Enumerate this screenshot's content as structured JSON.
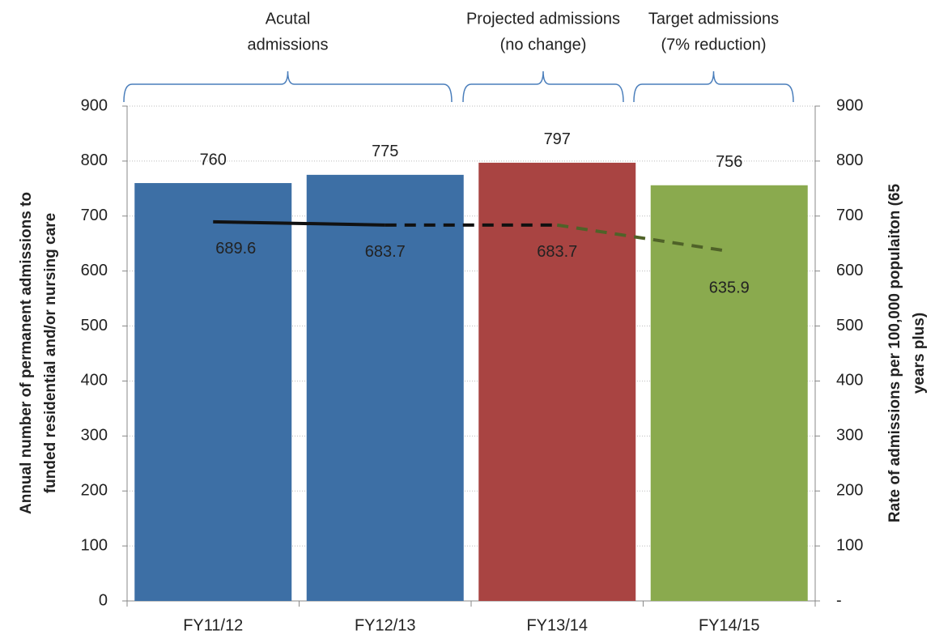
{
  "chart_data": {
    "type": "bar",
    "categories": [
      "FY11/12",
      "FY12/13",
      "FY13/14",
      "FY14/15"
    ],
    "series": [
      {
        "type": "bar",
        "values": [
          760,
          775,
          797,
          756
        ],
        "colors": [
          "#3d6fa5",
          "#3d6fa5",
          "#a94442",
          "#8aaa4e"
        ]
      },
      {
        "type": "line",
        "axis": "y2",
        "values": [
          689.6,
          683.7,
          683.7,
          635.9
        ],
        "segment_colors": [
          "#111111",
          "#111111",
          "#4f6228"
        ],
        "segment_dashed": [
          false,
          true,
          true
        ]
      }
    ],
    "ylim": [
      0,
      900
    ],
    "yticks": [
      0,
      100,
      200,
      300,
      400,
      500,
      600,
      700,
      800,
      900
    ],
    "y2lim": [
      0,
      900
    ],
    "y2ticks": [
      {
        "value": 0,
        "label": "-"
      },
      100,
      200,
      300,
      400,
      500,
      600,
      700,
      800,
      900
    ],
    "y_label": [
      "Annual number of permanent admissions to",
      "funded residential and/or nursing care"
    ],
    "y2_label": [
      "Rate of admissions per 100,000 populaiton (65",
      "years plus)"
    ],
    "annotations": [
      {
        "lines": [
          "Acutal",
          "admissions"
        ]
      },
      {
        "lines": [
          "Projected admissions",
          "(no change)"
        ]
      },
      {
        "lines": [
          "Target admissions",
          "(7% reduction)"
        ]
      }
    ],
    "grid": true
  }
}
